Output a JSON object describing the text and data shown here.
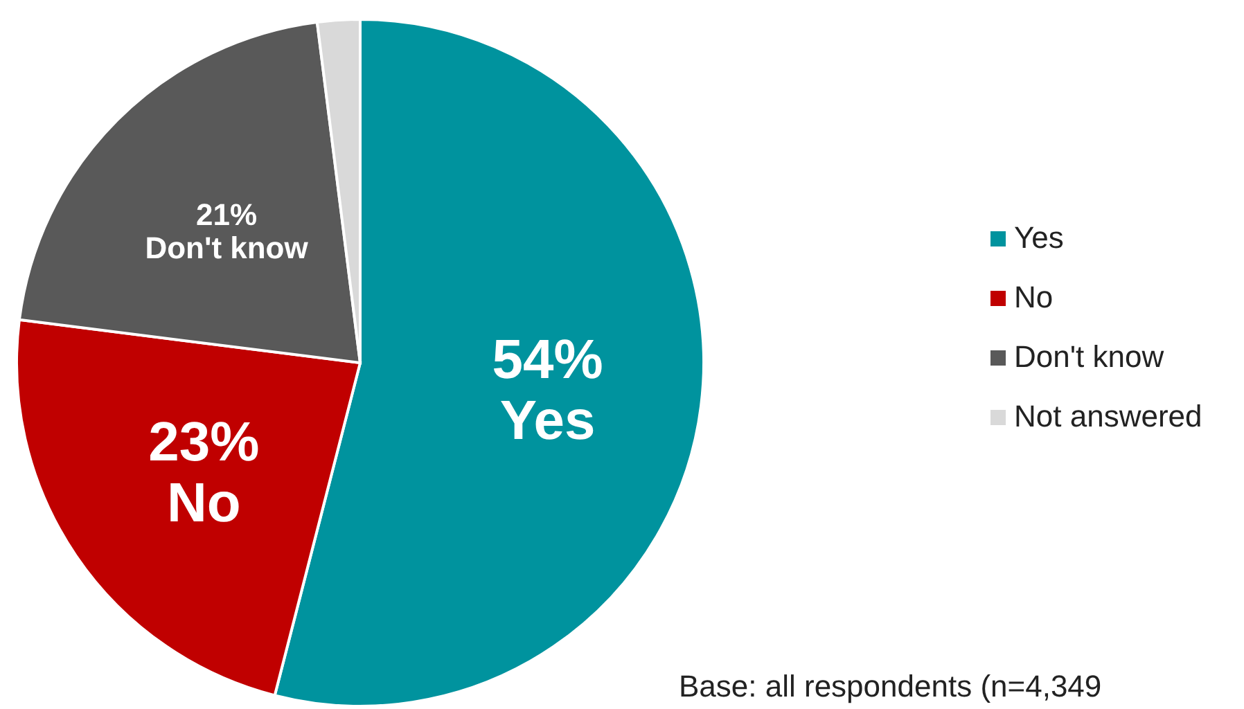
{
  "chart_data": {
    "type": "pie",
    "categories": [
      "Yes",
      "No",
      "Don't know",
      "Not answered"
    ],
    "values": [
      54,
      23,
      21,
      2
    ],
    "colors": [
      "#00939e",
      "#c00000",
      "#595959",
      "#d9d9d9"
    ],
    "value_labels": [
      "54%",
      "23%",
      "21%",
      null
    ],
    "legend": "right",
    "annotations": [
      "Base: all respondents (n=4,349"
    ]
  }
}
